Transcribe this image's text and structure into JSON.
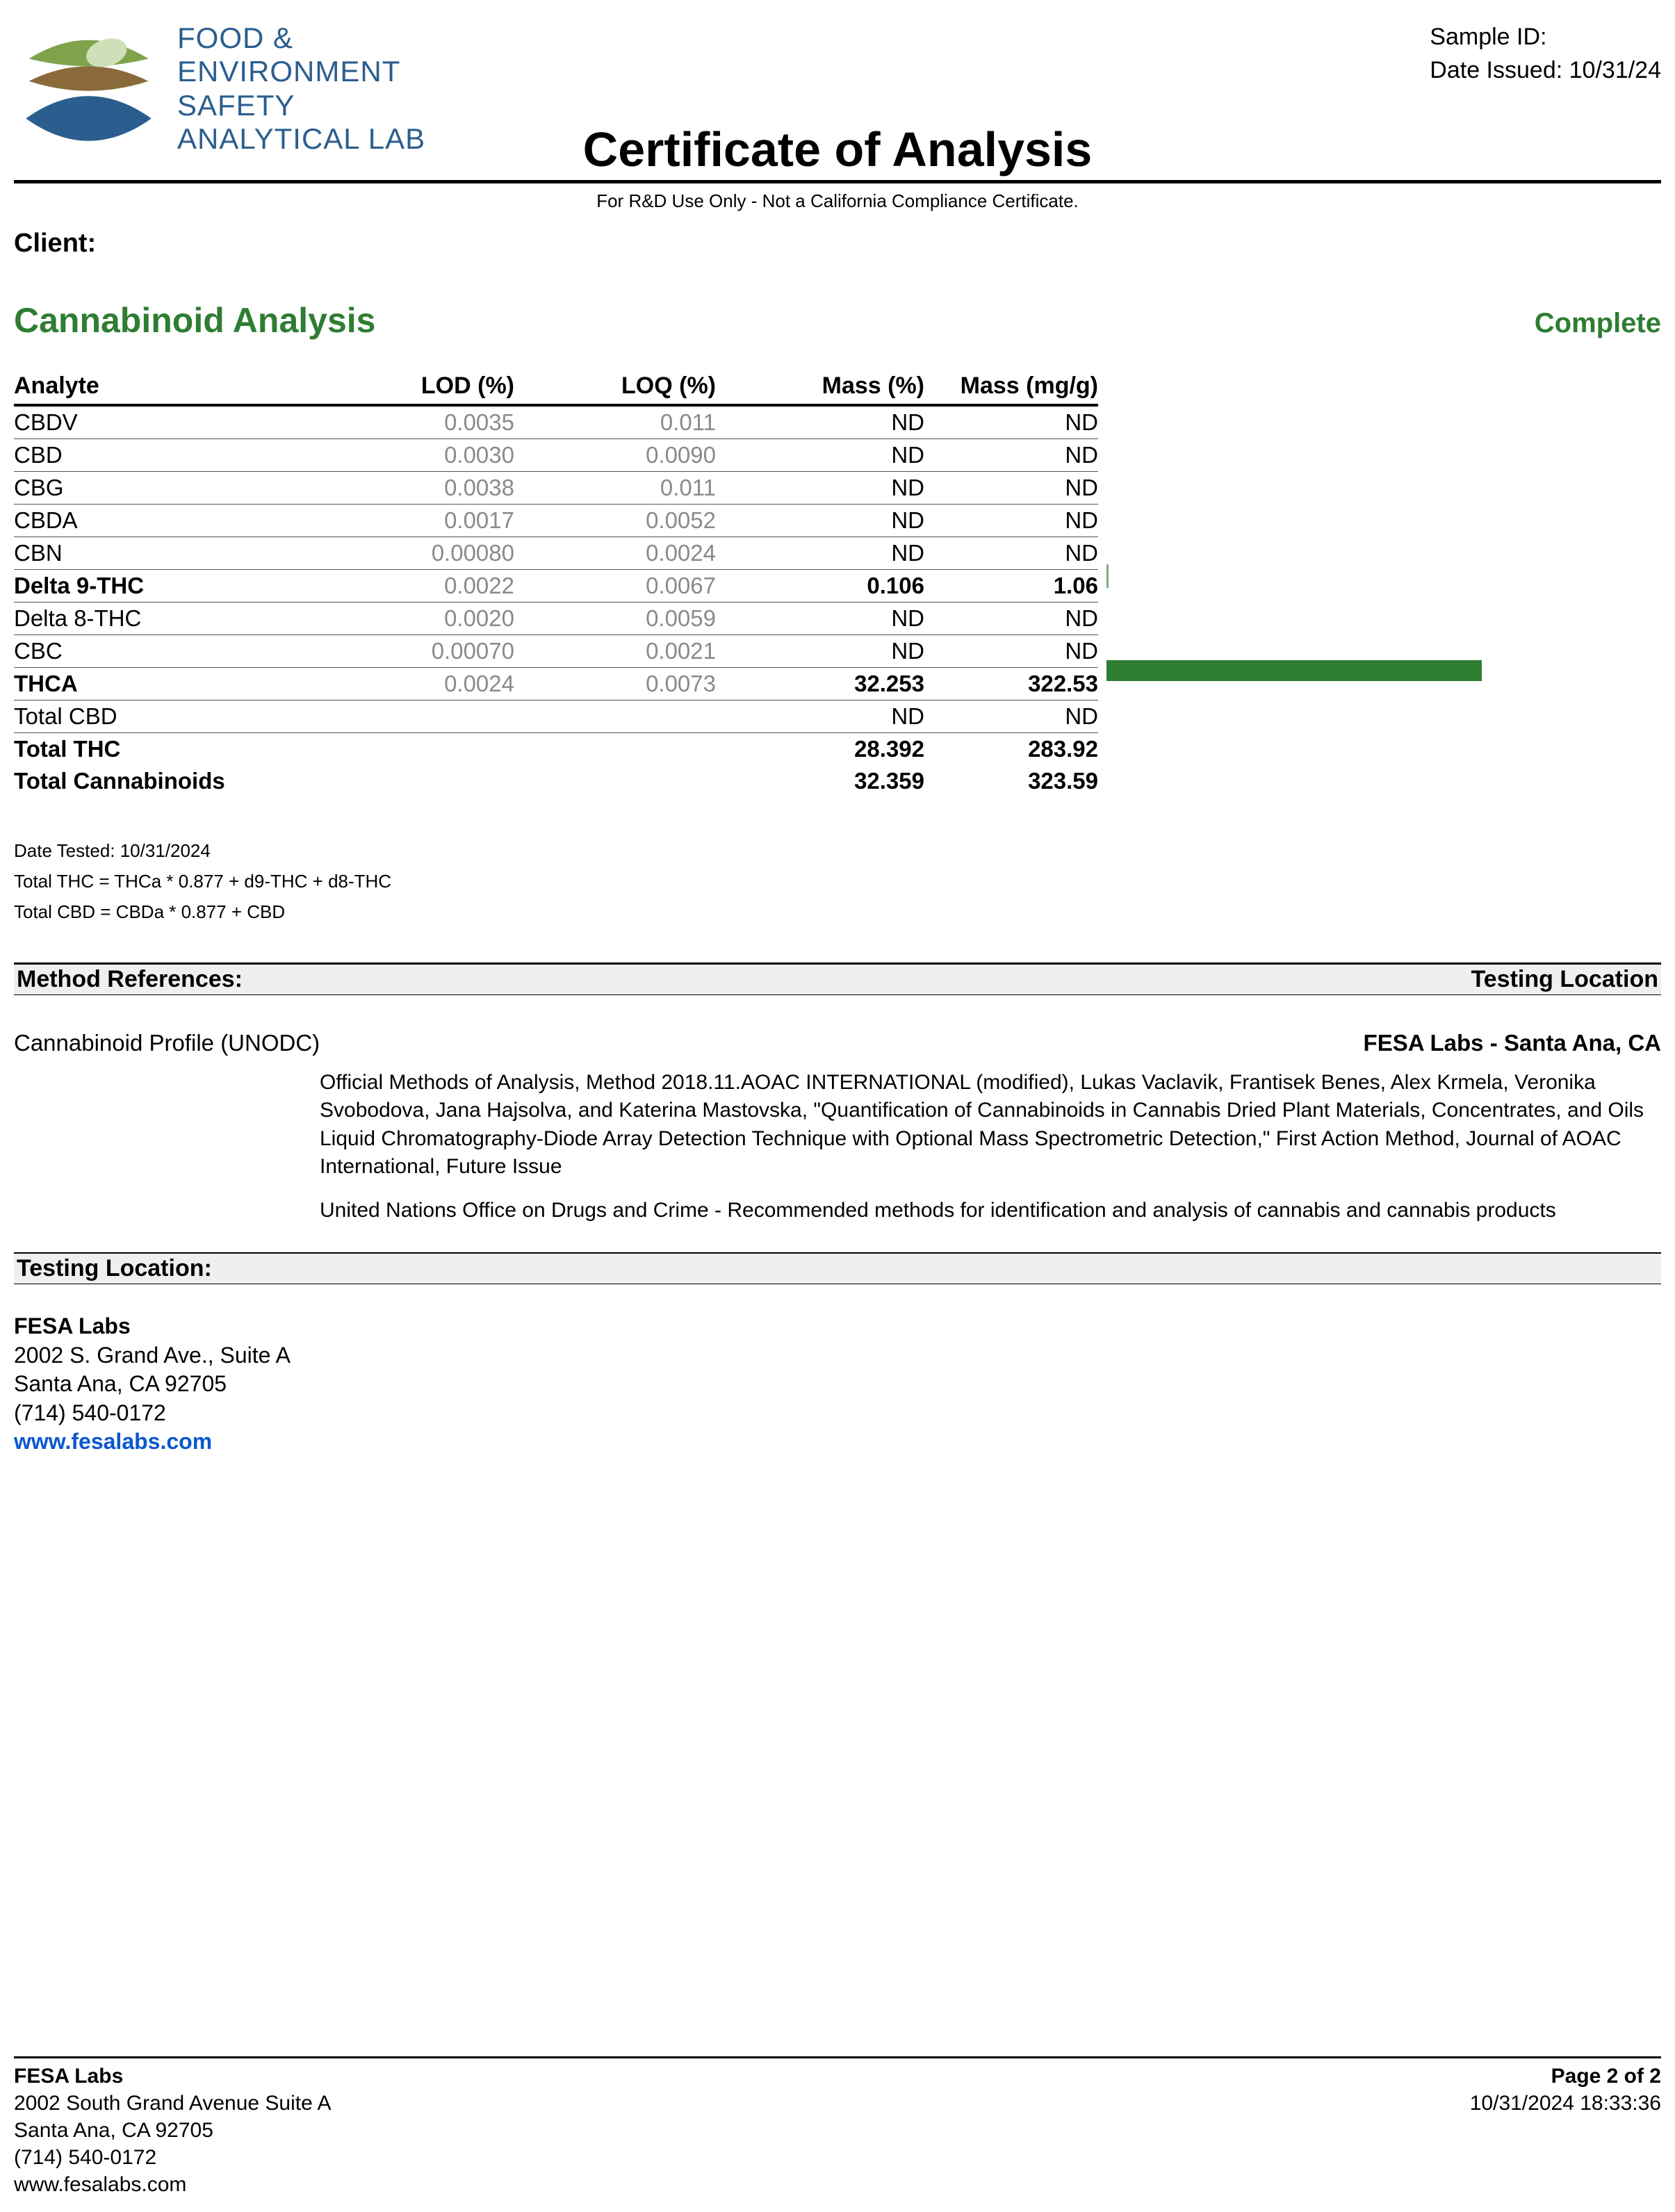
{
  "header": {
    "sample_id_label": "Sample ID:",
    "date_issued_label": "Date Issued: ",
    "date_issued": "10/31/24",
    "logo_text_l1": "FOOD &",
    "logo_text_l2": "ENVIRONMENT",
    "logo_text_l3": "SAFETY",
    "logo_text_l4": "ANALYTICAL LAB",
    "logo_colors": {
      "top": "#7fa34b",
      "mid": "#8a6a3a",
      "bottom": "#2b5e8e",
      "leaf": "#cfe0b8"
    }
  },
  "title": "Certificate of Analysis",
  "subnote": "For R&D Use Only - Not a California Compliance Certificate.",
  "client_label": "Client:",
  "section": {
    "title": "Cannabinoid Analysis",
    "status": "Complete"
  },
  "table": {
    "headers": [
      "Analyte",
      "LOD (%)",
      "LOQ (%)",
      "Mass (%)",
      "Mass (mg/g)"
    ],
    "rows": [
      {
        "analyte": "CBDV",
        "lod": "0.0035",
        "loq": "0.011",
        "massp": "ND",
        "massg": "ND",
        "bold": false,
        "bar": 0,
        "tick": false
      },
      {
        "analyte": "CBD",
        "lod": "0.0030",
        "loq": "0.0090",
        "massp": "ND",
        "massg": "ND",
        "bold": false,
        "bar": 0,
        "tick": false
      },
      {
        "analyte": "CBG",
        "lod": "0.0038",
        "loq": "0.011",
        "massp": "ND",
        "massg": "ND",
        "bold": false,
        "bar": 0,
        "tick": false
      },
      {
        "analyte": "CBDA",
        "lod": "0.0017",
        "loq": "0.0052",
        "massp": "ND",
        "massg": "ND",
        "bold": false,
        "bar": 0,
        "tick": false
      },
      {
        "analyte": "CBN",
        "lod": "0.00080",
        "loq": "0.0024",
        "massp": "ND",
        "massg": "ND",
        "bold": false,
        "bar": 0,
        "tick": false
      },
      {
        "analyte": "Delta 9-THC",
        "lod": "0.0022",
        "loq": "0.0067",
        "massp": "0.106",
        "massg": "1.06",
        "bold": true,
        "bar": 0,
        "tick": true
      },
      {
        "analyte": "Delta 8-THC",
        "lod": "0.0020",
        "loq": "0.0059",
        "massp": "ND",
        "massg": "ND",
        "bold": false,
        "bar": 0,
        "tick": false
      },
      {
        "analyte": "CBC",
        "lod": "0.00070",
        "loq": "0.0021",
        "massp": "ND",
        "massg": "ND",
        "bold": false,
        "bar": 0,
        "tick": false
      },
      {
        "analyte": "THCA",
        "lod": "0.0024",
        "loq": "0.0073",
        "massp": "32.253",
        "massg": "322.53",
        "bold": true,
        "bar": 540,
        "tick": false
      },
      {
        "analyte": "Total CBD",
        "lod": "",
        "loq": "",
        "massp": "ND",
        "massg": "ND",
        "bold": false,
        "bar": 0,
        "tick": false
      },
      {
        "analyte": "Total THC",
        "lod": "",
        "loq": "",
        "massp": "28.392",
        "massg": "283.92",
        "bold": true,
        "bar": 0,
        "tick": false,
        "noborder": true
      }
    ],
    "total_row": {
      "analyte": "Total Cannabinoids",
      "massp": "32.359",
      "massg": "323.59"
    },
    "bar_color": "#2e7d32"
  },
  "footnotes": {
    "l1": "Date Tested: 10/31/2024",
    "l2": "Total THC = THCa * 0.877 + d9-THC + d8-THC",
    "l3": "Total CBD = CBDa * 0.877 + CBD"
  },
  "methods": {
    "band_left": "Method References:",
    "band_right": "Testing Location",
    "profile": "Cannabinoid Profile (UNODC)",
    "lab": "FESA Labs - Santa Ana, CA",
    "body1": "Official Methods of Analysis, Method 2018.11.AOAC INTERNATIONAL (modified), Lukas Vaclavik, Frantisek Benes, Alex Krmela, Veronika Svobodova, Jana Hajsolva, and Katerina Mastovska, \"Quantification of Cannabinoids in Cannabis Dried Plant Materials, Concentrates, and Oils Liquid Chromatography-Diode Array Detection Technique with Optional Mass Spectrometric Detection,\" First Action Method, Journal of AOAC International, Future Issue",
    "body2": "United Nations Office on Drugs and Crime - Recommended methods for identification and analysis of cannabis and cannabis products"
  },
  "testing_location": {
    "band": "Testing Location:",
    "name": "FESA Labs",
    "addr1": "2002 S. Grand Ave., Suite A",
    "addr2": "Santa Ana, CA 92705",
    "phone": "(714) 540-0172",
    "url": "www.fesalabs.com"
  },
  "footer": {
    "name": "FESA Labs",
    "addr1": "2002 South Grand Avenue Suite A",
    "addr2": "Santa Ana, CA 92705",
    "phone": "(714) 540-0172",
    "url": "www.fesalabs.com",
    "page": "Page 2 of 2",
    "ts": "10/31/2024 18:33:36"
  }
}
